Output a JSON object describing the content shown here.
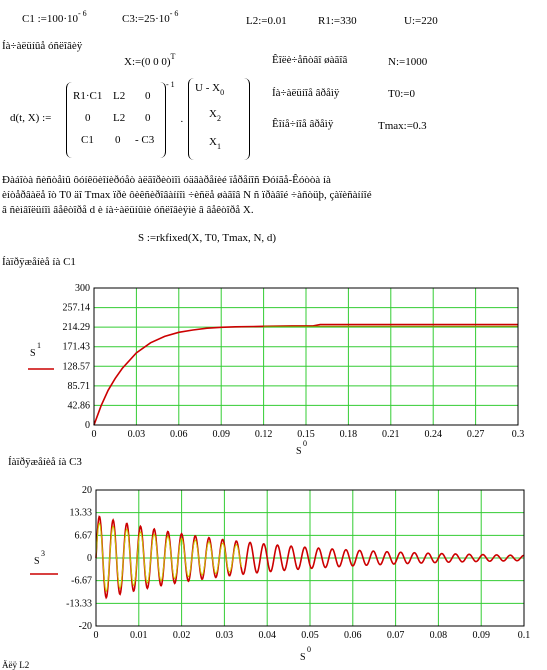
{
  "params": {
    "c1": "C1 :=100·10",
    "c1_exp": "- 6",
    "c3": "C3:=25·10",
    "c3_exp": "- 6",
    "l2": "L2:=0.01",
    "r1": "R1:=330",
    "u": "U:=220"
  },
  "initial_label": "Íà÷àëüíûå óñëîâèÿ",
  "x_vector": "X:=(0  0  0)",
  "x_vector_sup": "T",
  "n_label": "Êîëè÷åñòâî øàãîâ",
  "n_value": "N:=1000",
  "t0_label": "Íà÷àëüíîå âðåìÿ",
  "t0_value": "T0:=0",
  "tmax_label": "Êîíå÷íîå âðåìÿ",
  "tmax_value": "Tmax:=0.3",
  "d_def": "d(t, X) :=",
  "matrix": {
    "r1": [
      "R1·C1",
      "L2",
      "0"
    ],
    "r2": [
      "0",
      "L2",
      "0"
    ],
    "r3": [
      "C1",
      "0",
      "- C3"
    ],
    "inv": "- 1",
    "vec": [
      "U - X",
      "X",
      "X"
    ],
    "vec_sub": [
      "0",
      "2",
      "1"
    ]
  },
  "description": [
    "Ðàáîòà ñèñòåìû ôóíêöèîíèðóåò àëãîðèòìîì óäâàðåíèé ïåðåíîñ Ðóíãå-Êóòòà íà",
    "èíòåðâàëå îò T0 äî Tmax ïðè ôèêñèðîâàííîì ÷èñëå øàãîâ N ñ ïðàâîé ÷àñòüþ, çàïèñàííîé",
    "â ñèìâîëüíîì âåêòîðå d è íà÷àëüíûìè óñëîâèÿìè â âåêòîðå X."
  ],
  "solve": "S :=rkfixed(X, T0, Tmax, N, d)",
  "chart1_title": "Íàïðÿæåíèå íà C1",
  "chart2_title": "Íàïðÿæåíèå íà C3",
  "bottom_text": "Äëÿ L2",
  "chart_data": [
    {
      "type": "line",
      "ylabel": "S",
      "ylabel_sup": "1",
      "xlabel": "S",
      "xlabel_sup": "0",
      "xlim": [
        0,
        0.3
      ],
      "ylim": [
        0,
        300
      ],
      "xticks": [
        "0",
        "0.03",
        "0.06",
        "0.09",
        "0.12",
        "0.15",
        "0.18",
        "0.21",
        "0.24",
        "0.27",
        "0.3"
      ],
      "yticks": [
        "0",
        "42.86",
        "85.71",
        "128.57",
        "171.43",
        "214.29",
        "257.14",
        "300"
      ],
      "series": [
        {
          "color": "#cc0000",
          "x": [
            0,
            0.005,
            0.01,
            0.015,
            0.02,
            0.03,
            0.04,
            0.05,
            0.06,
            0.07,
            0.08,
            0.09,
            0.1,
            0.12,
            0.14,
            0.155,
            0.16,
            0.2,
            0.25,
            0.3
          ],
          "y": [
            0,
            42,
            76,
            102,
            124,
            158,
            180,
            194,
            203,
            208,
            212,
            214,
            215,
            216,
            217,
            217,
            220,
            220,
            220,
            220
          ]
        },
        {
          "color": "#8a8a00",
          "x": [
            0.12,
            0.155,
            0.2,
            0.25,
            0.3
          ],
          "y": [
            216,
            216,
            216,
            216,
            216
          ]
        }
      ]
    },
    {
      "type": "line",
      "ylabel": "S",
      "ylabel_sup": "3",
      "xlabel": "S",
      "xlabel_sup": "0",
      "xlim": [
        0,
        0.1
      ],
      "ylim": [
        -20,
        20
      ],
      "xticks": [
        "0",
        "0.01",
        "0.02",
        "0.03",
        "0.04",
        "0.05",
        "0.06",
        "0.07",
        "0.08",
        "0.09",
        "0.1"
      ],
      "yticks": [
        "-20",
        "-13.33",
        "-6.67",
        "0",
        "6.67",
        "13.33",
        "20"
      ],
      "series": [
        {
          "color": "#cc0000",
          "amplitude": 12.5,
          "decay": 28,
          "period": 0.0032,
          "x_end": 0.1
        },
        {
          "color": "#c8c800",
          "amplitude": 10.5,
          "decay": 30,
          "period": 0.0032,
          "x_end": 0.034
        }
      ]
    }
  ],
  "colors": {
    "grid": "#33cc33",
    "frame": "#000000",
    "legend": "#cc0000"
  }
}
